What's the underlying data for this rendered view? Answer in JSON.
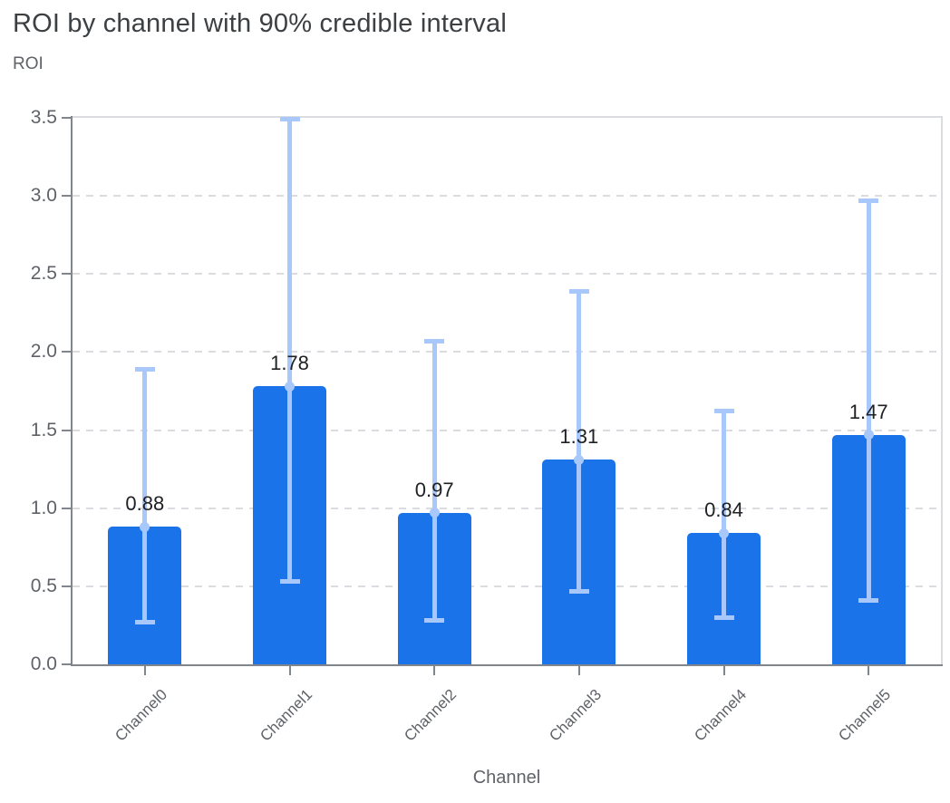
{
  "chart_data": {
    "type": "bar",
    "title": "ROI by channel with 90% credible interval",
    "ylabel": "ROI",
    "xlabel": "Channel",
    "categories": [
      "Channel0",
      "Channel1",
      "Channel2",
      "Channel3",
      "Channel4",
      "Channel5"
    ],
    "series": [
      {
        "name": "ROI",
        "values": [
          0.88,
          1.78,
          0.97,
          1.31,
          0.84,
          1.47
        ]
      }
    ],
    "value_labels": [
      "0.88",
      "1.78",
      "0.97",
      "1.31",
      "0.84",
      "1.47"
    ],
    "error_bars": {
      "low": [
        0.27,
        0.53,
        0.28,
        0.47,
        0.3,
        0.41
      ],
      "high": [
        1.89,
        3.49,
        2.07,
        2.39,
        1.62,
        2.97
      ]
    },
    "ylim": [
      0,
      3.5
    ],
    "yticks": [
      "0.0",
      "0.5",
      "1.0",
      "1.5",
      "2.0",
      "2.5",
      "3.0",
      "3.5"
    ],
    "grid": "horizontal-dashed",
    "legend": "none",
    "colors": {
      "bar": "#1A73E8",
      "error_bar": "#A8C7FA",
      "grid": "#DADCE0",
      "axis_line": "#80868B",
      "title_text": "#3C4043",
      "axis_text": "#5F6368",
      "value_label_text": "#202124",
      "background": "#FFFFFF"
    }
  }
}
